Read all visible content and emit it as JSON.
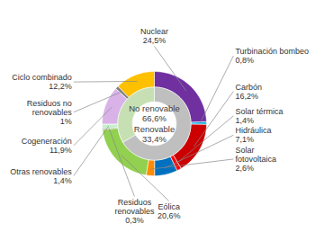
{
  "chart_data": {
    "type": "donut",
    "data_labels": true,
    "rings": [
      {
        "categories": [
          "Nuclear",
          "Turbinación bombeo",
          "Carbón",
          "Solar térmica",
          "Hidráulica",
          "Solar\nfotovoltaica",
          "Eólica",
          "Residuos\nrenovables",
          "Otras renovables",
          "Cogeneración",
          "Residuos no\nrenovables",
          "Ciclo combinado"
        ],
        "values": [
          24.5,
          0.8,
          16.2,
          1.4,
          7.1,
          2.6,
          20.6,
          0.3,
          1.4,
          11.9,
          1.0,
          12.2
        ],
        "value_labels": [
          "24,5%",
          "0,8%",
          "16,2%",
          "1,4%",
          "7,1%",
          "2,6%",
          "20,6%",
          "0,3%",
          "1,4%",
          "11,9%",
          "1%",
          "12,2%"
        ],
        "colors": [
          "#7030A0",
          "#00B0F0",
          "#CC0000",
          "#FF0000",
          "#0070C0",
          "#FF8C00",
          "#92D050",
          "#375623",
          "#C6EFCE",
          "#D9B3E8",
          "#808080",
          "#FFC000"
        ]
      },
      {
        "categories": [
          "No renovable",
          "Renovable"
        ],
        "values": [
          66.6,
          33.4
        ],
        "value_labels": [
          "66,6%",
          "33,4%"
        ],
        "colors": [
          "#BFBFBF",
          "#C6E0B4"
        ]
      }
    ]
  }
}
